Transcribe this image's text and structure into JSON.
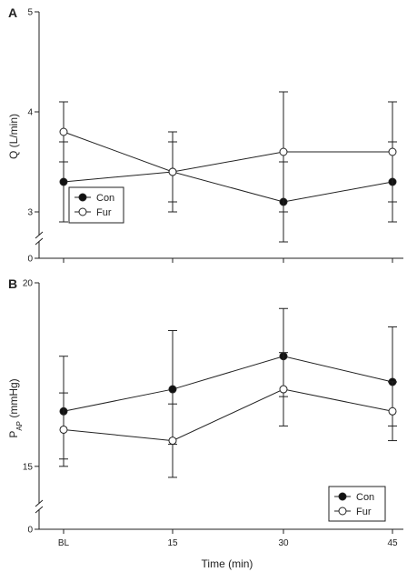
{
  "colors": {
    "axis": "#222222",
    "con_fill": "#111111",
    "fur_fill": "#ffffff",
    "line": "#222222"
  },
  "chart_data": [
    {
      "panel": "A",
      "type": "line",
      "categories": [
        "BL",
        "15",
        "30",
        "45"
      ],
      "ylabel": "Q (L/min)",
      "ylim": [
        0,
        5
      ],
      "axis_break": true,
      "yticks": [
        "0",
        "3",
        "4",
        "5"
      ],
      "legend": {
        "placement": "bottom-left",
        "entries": [
          "Con",
          "Fur"
        ]
      },
      "series": [
        {
          "name": "Con",
          "marker": "filled-circle",
          "values": [
            3.3,
            3.4,
            3.1,
            3.3
          ],
          "err_low": [
            2.9,
            3.0,
            2.7,
            2.9
          ],
          "err_high": [
            3.7,
            3.8,
            3.5,
            3.7
          ]
        },
        {
          "name": "Fur",
          "marker": "open-circle",
          "values": [
            3.8,
            3.4,
            3.6,
            3.6
          ],
          "err_low": [
            3.5,
            3.1,
            3.0,
            3.1
          ],
          "err_high": [
            4.1,
            3.7,
            4.2,
            4.1
          ]
        }
      ]
    },
    {
      "panel": "B",
      "type": "line",
      "categories": [
        "BL",
        "15",
        "30",
        "45"
      ],
      "xlabel": "Time (min)",
      "ylabel_main": "P",
      "ylabel_sub": "AP",
      "ylabel_unit": " (mmHg)",
      "ylim": [
        0,
        20
      ],
      "axis_break": true,
      "yticks": [
        "0",
        "15",
        "20"
      ],
      "legend": {
        "placement": "bottom-right",
        "entries": [
          "Con",
          "Fur"
        ]
      },
      "series": [
        {
          "name": "Con",
          "marker": "filled-circle",
          "values": [
            16.5,
            17.1,
            18.0,
            17.3
          ],
          "err_low": [
            15.0,
            15.6,
            16.9,
            16.1
          ],
          "err_high": [
            18.0,
            18.7,
            19.3,
            18.8
          ]
        },
        {
          "name": "Fur",
          "marker": "open-circle",
          "values": [
            16.0,
            15.7,
            17.1,
            16.5
          ],
          "err_low": [
            15.2,
            14.7,
            16.1,
            15.7
          ],
          "err_high": [
            17.0,
            16.7,
            18.1,
            17.3
          ]
        }
      ]
    }
  ]
}
